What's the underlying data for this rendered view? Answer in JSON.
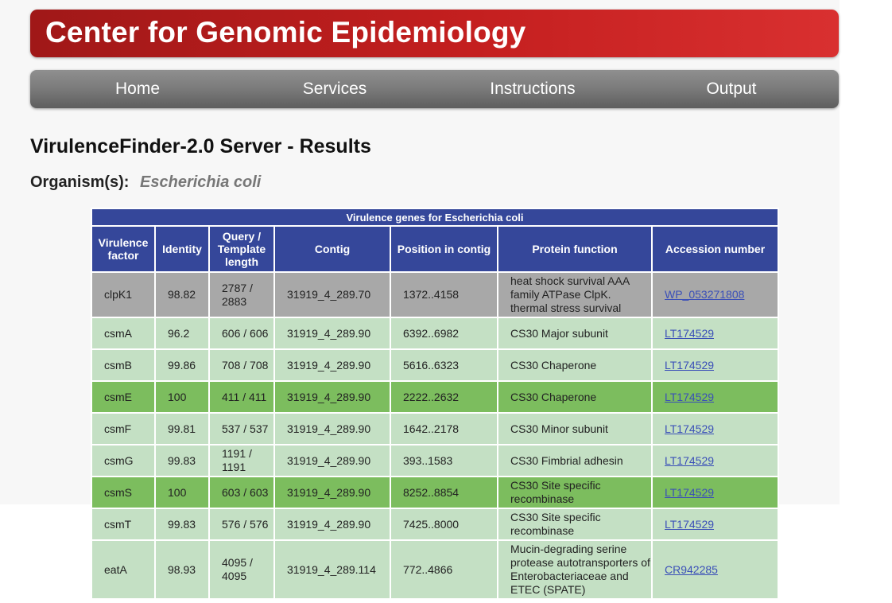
{
  "header": {
    "title": "Center for Genomic Epidemiology"
  },
  "nav": [
    {
      "label": "Home"
    },
    {
      "label": "Services"
    },
    {
      "label": "Instructions"
    },
    {
      "label": "Output"
    }
  ],
  "page": {
    "title": "VirulenceFinder-2.0 Server - Results",
    "organism_label": "Organism(s):",
    "organism_value": "Escherichia coli"
  },
  "table": {
    "caption": "Virulence genes for Escherichia coli",
    "columns": [
      "Virulence factor",
      "Identity",
      "Query / Template length",
      "Contig",
      "Position in contig",
      "Protein function",
      "Accession number"
    ],
    "rows": [
      {
        "factor": "clpK1",
        "identity": "98.82",
        "length": "2787 / 2883",
        "contig": "31919_4_289.70",
        "position": "1372..4158",
        "function": "heat shock survival AAA family ATPase ClpK. thermal stress survival",
        "accession": "WP_053271808",
        "shade": "grey"
      },
      {
        "factor": "csmA",
        "identity": "96.2",
        "length": "606 / 606",
        "contig": "31919_4_289.90",
        "position": "6392..6982",
        "function": "CS30 Major subunit",
        "accession": "LT174529",
        "shade": "light"
      },
      {
        "factor": "csmB",
        "identity": "99.86",
        "length": "708 / 708",
        "contig": "31919_4_289.90",
        "position": "5616..6323",
        "function": "CS30 Chaperone",
        "accession": "LT174529",
        "shade": "light"
      },
      {
        "factor": "csmE",
        "identity": "100",
        "length": "411 / 411",
        "contig": "31919_4_289.90",
        "position": "2222..2632",
        "function": "CS30 Chaperone",
        "accession": "LT174529",
        "shade": "dark"
      },
      {
        "factor": "csmF",
        "identity": "99.81",
        "length": "537 / 537",
        "contig": "31919_4_289.90",
        "position": "1642..2178",
        "function": "CS30 Minor subunit",
        "accession": "LT174529",
        "shade": "light"
      },
      {
        "factor": "csmG",
        "identity": "99.83",
        "length": "1191 / 1191",
        "contig": "31919_4_289.90",
        "position": "393..1583",
        "function": "CS30 Fimbrial adhesin",
        "accession": "LT174529",
        "shade": "light"
      },
      {
        "factor": "csmS",
        "identity": "100",
        "length": "603 / 603",
        "contig": "31919_4_289.90",
        "position": "8252..8854",
        "function": "CS30 Site specific recombinase",
        "accession": "LT174529",
        "shade": "dark"
      },
      {
        "factor": "csmT",
        "identity": "99.83",
        "length": "576 / 576",
        "contig": "31919_4_289.90",
        "position": "7425..8000",
        "function": "CS30 Site specific recombinase",
        "accession": "LT174529",
        "shade": "light"
      },
      {
        "factor": "eatA",
        "identity": "98.93",
        "length": "4095 / 4095",
        "contig": "31919_4_289.114",
        "position": "772..4866",
        "function": "Mucin-degrading serine protease autotransporters of Enterobacteriaceae and ETEC (SPATE)",
        "accession": "CR942285",
        "shade": "light"
      }
    ]
  }
}
